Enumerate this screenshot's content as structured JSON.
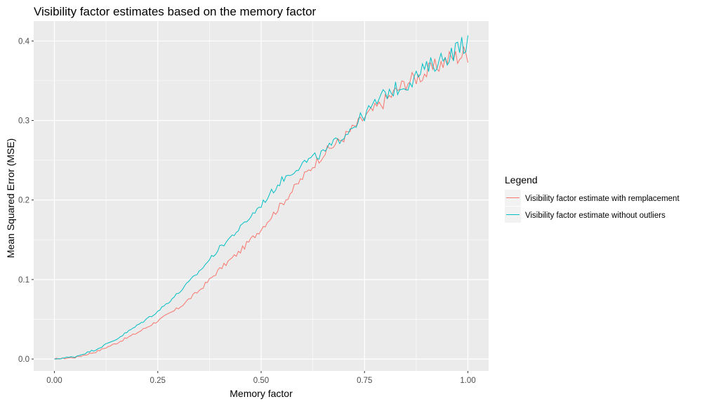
{
  "chart_data": {
    "type": "line",
    "title": "Visibility factor estimates based on the memory factor",
    "xlabel": "Memory factor",
    "ylabel": "Mean Squared Error (MSE)",
    "xlim": [
      -0.05,
      1.05
    ],
    "ylim": [
      -0.015,
      0.425
    ],
    "x_ticks": [
      0.0,
      0.25,
      0.5,
      0.75,
      1.0
    ],
    "x_tick_labels": [
      "0.00",
      "0.25",
      "0.50",
      "0.75",
      "1.00"
    ],
    "y_ticks": [
      0.0,
      0.1,
      0.2,
      0.3,
      0.4
    ],
    "y_tick_labels": [
      "0.0",
      "0.1",
      "0.2",
      "0.3",
      "0.4"
    ],
    "grid": true,
    "background": "#ebebeb",
    "legend": {
      "title": "Legend",
      "position": "right"
    },
    "x": [
      0.0,
      0.05,
      0.1,
      0.15,
      0.2,
      0.25,
      0.3,
      0.35,
      0.4,
      0.45,
      0.5,
      0.55,
      0.6,
      0.65,
      0.7,
      0.75,
      0.8,
      0.85,
      0.9,
      0.95,
      1.0
    ],
    "series": [
      {
        "name": "Visibility factor estimate with remplacement",
        "color": "#F8766D",
        "values": [
          0.0,
          0.002,
          0.009,
          0.02,
          0.033,
          0.048,
          0.064,
          0.086,
          0.113,
          0.136,
          0.164,
          0.195,
          0.228,
          0.258,
          0.279,
          0.304,
          0.325,
          0.348,
          0.36,
          0.377,
          0.385
        ]
      },
      {
        "name": "Visibility factor estimate without outliers",
        "color": "#00BFC4",
        "values": [
          0.0,
          0.003,
          0.012,
          0.025,
          0.042,
          0.06,
          0.083,
          0.11,
          0.14,
          0.165,
          0.194,
          0.225,
          0.246,
          0.259,
          0.282,
          0.307,
          0.334,
          0.345,
          0.366,
          0.381,
          0.4
        ]
      }
    ]
  }
}
